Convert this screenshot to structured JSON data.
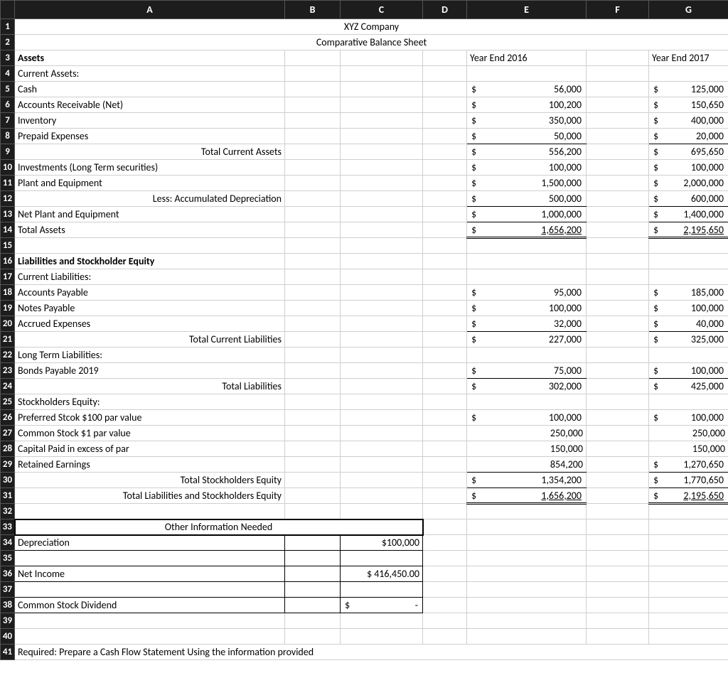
{
  "columns": [
    "A",
    "B",
    "C",
    "D",
    "E",
    "F",
    "G"
  ],
  "title1": "XYZ Company",
  "title2": "Comparative Balance Sheet",
  "headers": {
    "assets": "Assets",
    "y2016": "Year End 2016",
    "y2017": "Year End 2017"
  },
  "rows": {
    "r4": {
      "a": "Current Assets:"
    },
    "r5": {
      "a": "Cash",
      "e": "56,000",
      "g": "125,000",
      "eS": "$",
      "gS": "$"
    },
    "r6": {
      "a": "Accounts Receivable (Net)",
      "e": "100,200",
      "g": "150,650",
      "eS": "$",
      "gS": "$"
    },
    "r7": {
      "a": "Inventory",
      "e": "350,000",
      "g": "400,000",
      "eS": "$",
      "gS": "$"
    },
    "r8": {
      "a": "Prepaid Expenses",
      "e": "50,000",
      "g": "20,000",
      "eS": "$",
      "gS": "$"
    },
    "r9": {
      "a": "Total Current Assets",
      "e": "556,200",
      "g": "695,650",
      "eS": "$",
      "gS": "$"
    },
    "r10": {
      "a": "Investments (Long Term securities)",
      "e": "100,000",
      "g": "100,000",
      "eS": "$",
      "gS": "$"
    },
    "r11": {
      "a": "Plant and Equipment",
      "e": "1,500,000",
      "g": "2,000,000",
      "eS": "$",
      "gS": "$"
    },
    "r12": {
      "a": "Less: Accumulated Depreciation",
      "e": "500,000",
      "g": "600,000",
      "eS": "$",
      "gS": "$"
    },
    "r13": {
      "a": "Net Plant and Equipment",
      "e": "1,000,000",
      "g": "1,400,000",
      "eS": "$",
      "gS": "$"
    },
    "r14": {
      "a": "Total Assets",
      "e": "1,656,200",
      "g": "2,195,650",
      "eS": "$",
      "gS": "$"
    },
    "r16": {
      "a": "Liabilities and Stockholder Equity"
    },
    "r17": {
      "a": "Current Liabilities:"
    },
    "r18": {
      "a": "Accounts Payable",
      "e": "95,000",
      "g": "185,000",
      "eS": "$",
      "gS": "$"
    },
    "r19": {
      "a": "Notes Payable",
      "e": "100,000",
      "g": "100,000",
      "eS": "$",
      "gS": "$"
    },
    "r20": {
      "a": "Accrued Expenses",
      "e": "32,000",
      "g": "40,000",
      "eS": "$",
      "gS": "$"
    },
    "r21": {
      "a": "Total Current Liabilities",
      "e": "227,000",
      "g": "325,000",
      "eS": "$",
      "gS": "$"
    },
    "r22": {
      "a": "Long Term Liabilities:"
    },
    "r23": {
      "a": "Bonds Payable 2019",
      "e": "75,000",
      "g": "100,000",
      "eS": "$",
      "gS": "$"
    },
    "r24": {
      "a": "Total Liabilities",
      "e": "302,000",
      "g": "425,000",
      "eS": "$",
      "gS": "$"
    },
    "r25": {
      "a": "Stockholders Equity:"
    },
    "r26": {
      "a": "Preferred Stcok $100 par value",
      "e": "100,000",
      "g": "100,000",
      "eS": "$",
      "gS": "$"
    },
    "r27": {
      "a": "Common Stock $1 par value",
      "e": "250,000",
      "g": "250,000"
    },
    "r28": {
      "a": "Capital Paid in excess of par",
      "e": "150,000",
      "g": "150,000"
    },
    "r29": {
      "a": "Retained Earnings",
      "e": "854,200",
      "g": "1,270,650",
      "gS": "$"
    },
    "r30": {
      "a": "Total Stockholders Equity",
      "e": "1,354,200",
      "g": "1,770,650",
      "eS": "$",
      "gS": "$"
    },
    "r31": {
      "a": "Total Liabilities and Stockholders Equity",
      "e": "1,656,200",
      "g": "2,195,650",
      "eS": "$",
      "gS": "$"
    },
    "r33": {
      "a": "Other Information Needed"
    },
    "r34": {
      "a": "Depreciation",
      "c": "$100,000"
    },
    "r36": {
      "a": "Net Income",
      "c": "$  416,450.00"
    },
    "r38": {
      "a": "Common Stock Dividend",
      "cS": "$",
      "c": "-"
    },
    "r41": {
      "a": "Required:  Prepare a Cash Flow Statement Using the information provided"
    }
  },
  "styling": {
    "header_bg": "#1d1d1d",
    "header_fg": "#ffffff",
    "grid_color": "#cfcfcf",
    "font_family": "Calibri",
    "font_size_pt": 11
  }
}
